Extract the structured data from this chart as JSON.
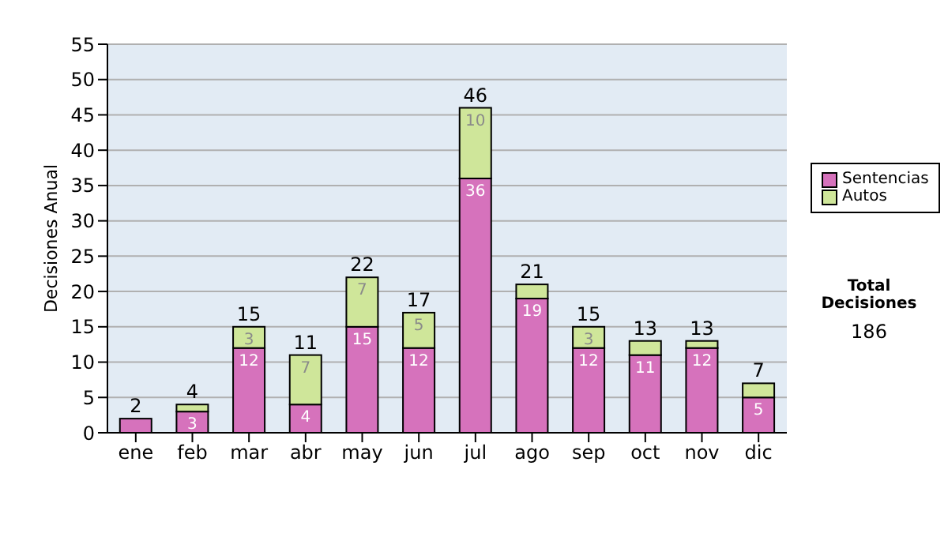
{
  "chart_data": {
    "type": "bar",
    "stacked": true,
    "ylabel": "Decisiones Anual",
    "categories": [
      "ene",
      "feb",
      "mar",
      "abr",
      "may",
      "jun",
      "jul",
      "ago",
      "sep",
      "oct",
      "nov",
      "dic"
    ],
    "series": [
      {
        "name": "Sentencias",
        "color": "#d672bc",
        "values": [
          2,
          3,
          12,
          4,
          15,
          12,
          36,
          19,
          12,
          11,
          12,
          5
        ],
        "value_labels": [
          null,
          "3",
          "12",
          "4",
          "15",
          "12",
          "36",
          "19",
          "12",
          "11",
          "12",
          "5"
        ]
      },
      {
        "name": "Autos",
        "color": "#cfe69a",
        "values": [
          0,
          1,
          3,
          7,
          7,
          5,
          10,
          2,
          3,
          2,
          1,
          2
        ],
        "value_labels": [
          null,
          null,
          "3",
          "7",
          "7",
          "5",
          "10",
          null,
          "3",
          null,
          null,
          null
        ]
      }
    ],
    "totals": [
      "2",
      "4",
      "15",
      "11",
      "22",
      "17",
      "46",
      "21",
      "15",
      "13",
      "13",
      "7"
    ],
    "ylim": [
      0,
      55
    ],
    "yticks": [
      0,
      5,
      10,
      15,
      20,
      25,
      30,
      35,
      40,
      45,
      50,
      55
    ],
    "grid": "y",
    "legend": "right",
    "annotations": [
      "Total Decisiones",
      "186"
    ]
  }
}
